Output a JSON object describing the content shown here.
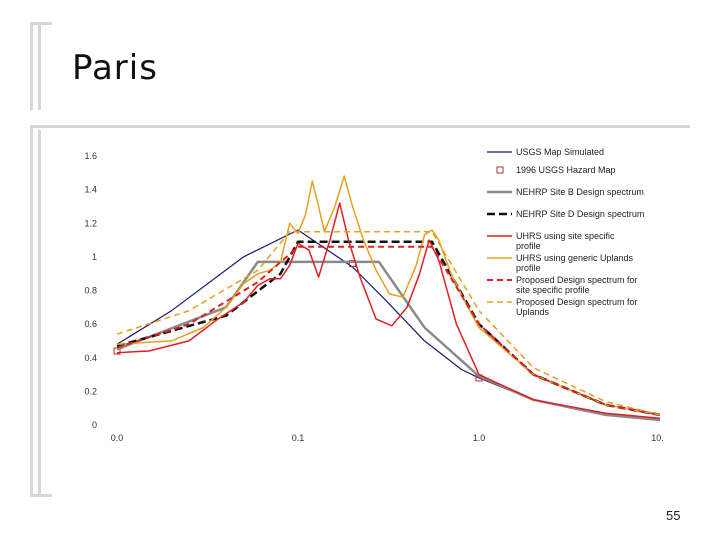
{
  "slide": {
    "title": "Paris",
    "page_number": "55"
  },
  "chart_data": {
    "type": "line",
    "x_scale": "log",
    "xlim": [
      0.01,
      10
    ],
    "ylim": [
      0,
      1.6
    ],
    "x_ticks": [
      0.01,
      0.1,
      1.0,
      10.0
    ],
    "x_tick_labels": [
      "0.0",
      "0.1",
      "1.0",
      "10.0"
    ],
    "y_ticks": [
      0,
      0.2,
      0.4,
      0.6,
      0.8,
      1,
      1.2,
      1.4,
      1.6
    ],
    "y_tick_labels": [
      "0",
      "0.2",
      "0.4",
      "0.6",
      "0.8",
      "1",
      "1.2",
      "1.4",
      "1.6"
    ],
    "legend_position": "top-right",
    "series": [
      {
        "name": "USGS Map Simulated",
        "color": "#1a1a6e",
        "dash": "",
        "width": 1.2,
        "points": [
          [
            0.01,
            0.48
          ],
          [
            0.02,
            0.68
          ],
          [
            0.05,
            1.0
          ],
          [
            0.1,
            1.16
          ],
          [
            0.2,
            0.94
          ],
          [
            0.3,
            0.75
          ],
          [
            0.5,
            0.5
          ],
          [
            0.8,
            0.33
          ],
          [
            1,
            0.28
          ],
          [
            2,
            0.15
          ],
          [
            5,
            0.07
          ],
          [
            10,
            0.03
          ]
        ]
      },
      {
        "name": "1996 USGS Hazard Map",
        "color": "#b03030",
        "dash": "",
        "width": 0,
        "marker": "square",
        "points": [
          [
            0.01,
            0.44
          ],
          [
            0.2,
            0.96
          ],
          [
            1,
            0.28
          ]
        ]
      },
      {
        "name": "NEHRP Site B Design spectrum",
        "color": "#8a8a8a",
        "dash": "",
        "width": 2.5,
        "points": [
          [
            0.01,
            0.45
          ],
          [
            0.04,
            0.7
          ],
          [
            0.06,
            0.97
          ],
          [
            0.28,
            0.97
          ],
          [
            0.5,
            0.58
          ],
          [
            1,
            0.29
          ],
          [
            2,
            0.15
          ],
          [
            5,
            0.06
          ],
          [
            10,
            0.03
          ]
        ]
      },
      {
        "name": "NEHRP Site D Design spectrum",
        "color": "#111111",
        "dash": "8,4",
        "width": 2.5,
        "points": [
          [
            0.01,
            0.47
          ],
          [
            0.04,
            0.65
          ],
          [
            0.08,
            0.9
          ],
          [
            0.1,
            1.09
          ],
          [
            0.55,
            1.09
          ],
          [
            1,
            0.6
          ],
          [
            2,
            0.3
          ],
          [
            5,
            0.12
          ],
          [
            10,
            0.06
          ]
        ]
      },
      {
        "name": "UHRS using site specific profile",
        "color": "#e02020",
        "dash": "",
        "width": 1.5,
        "points": [
          [
            0.01,
            0.43
          ],
          [
            0.015,
            0.44
          ],
          [
            0.025,
            0.5
          ],
          [
            0.035,
            0.62
          ],
          [
            0.05,
            0.73
          ],
          [
            0.06,
            0.83
          ],
          [
            0.07,
            0.87
          ],
          [
            0.08,
            0.87
          ],
          [
            0.09,
            0.95
          ],
          [
            0.1,
            1.08
          ],
          [
            0.115,
            1.04
          ],
          [
            0.13,
            0.88
          ],
          [
            0.15,
            1.1
          ],
          [
            0.17,
            1.32
          ],
          [
            0.19,
            1.1
          ],
          [
            0.22,
            0.88
          ],
          [
            0.27,
            0.63
          ],
          [
            0.33,
            0.59
          ],
          [
            0.4,
            0.7
          ],
          [
            0.47,
            0.9
          ],
          [
            0.53,
            1.1
          ],
          [
            0.6,
            0.98
          ],
          [
            0.75,
            0.6
          ],
          [
            1,
            0.3
          ],
          [
            2,
            0.15
          ],
          [
            5,
            0.07
          ],
          [
            10,
            0.04
          ]
        ]
      },
      {
        "name": "UHRS using generic Uplands profile",
        "color": "#e5a020",
        "dash": "",
        "width": 1.5,
        "points": [
          [
            0.01,
            0.48
          ],
          [
            0.02,
            0.5
          ],
          [
            0.03,
            0.58
          ],
          [
            0.04,
            0.7
          ],
          [
            0.05,
            0.84
          ],
          [
            0.06,
            0.9
          ],
          [
            0.07,
            0.92
          ],
          [
            0.08,
            0.97
          ],
          [
            0.09,
            1.2
          ],
          [
            0.1,
            1.14
          ],
          [
            0.11,
            1.25
          ],
          [
            0.12,
            1.45
          ],
          [
            0.13,
            1.3
          ],
          [
            0.14,
            1.15
          ],
          [
            0.16,
            1.3
          ],
          [
            0.18,
            1.48
          ],
          [
            0.2,
            1.3
          ],
          [
            0.23,
            1.1
          ],
          [
            0.27,
            0.92
          ],
          [
            0.32,
            0.78
          ],
          [
            0.38,
            0.76
          ],
          [
            0.45,
            0.95
          ],
          [
            0.5,
            1.13
          ],
          [
            0.55,
            1.16
          ],
          [
            0.6,
            1.1
          ],
          [
            0.7,
            0.9
          ],
          [
            0.85,
            0.72
          ],
          [
            1,
            0.58
          ],
          [
            2,
            0.3
          ],
          [
            5,
            0.12
          ],
          [
            10,
            0.06
          ]
        ]
      },
      {
        "name": "Proposed Design spectrum for site specific profile",
        "color": "#e02020",
        "dash": "6,4",
        "width": 2,
        "points": [
          [
            0.01,
            0.46
          ],
          [
            0.025,
            0.6
          ],
          [
            0.06,
            0.85
          ],
          [
            0.1,
            1.06
          ],
          [
            0.55,
            1.06
          ],
          [
            1,
            0.6
          ],
          [
            2,
            0.3
          ],
          [
            5,
            0.12
          ],
          [
            10,
            0.06
          ]
        ]
      },
      {
        "name": "Proposed Design spectrum for Uplands",
        "color": "#e5a020",
        "dash": "6,4",
        "width": 1.5,
        "points": [
          [
            0.01,
            0.54
          ],
          [
            0.025,
            0.68
          ],
          [
            0.06,
            0.92
          ],
          [
            0.09,
            1.15
          ],
          [
            0.55,
            1.15
          ],
          [
            1,
            0.68
          ],
          [
            2,
            0.34
          ],
          [
            5,
            0.14
          ],
          [
            10,
            0.06
          ]
        ]
      }
    ],
    "legend": [
      "USGS Map Simulated",
      "1996 USGS Hazard Map",
      "NEHRP Site B Design spectrum",
      "NEHRP Site D Design spectrum",
      "UHRS using site specific profile",
      "UHRS using generic Uplands profile",
      "Proposed Design spectrum for site specific profile",
      "Proposed Design spectrum for Uplands"
    ]
  }
}
